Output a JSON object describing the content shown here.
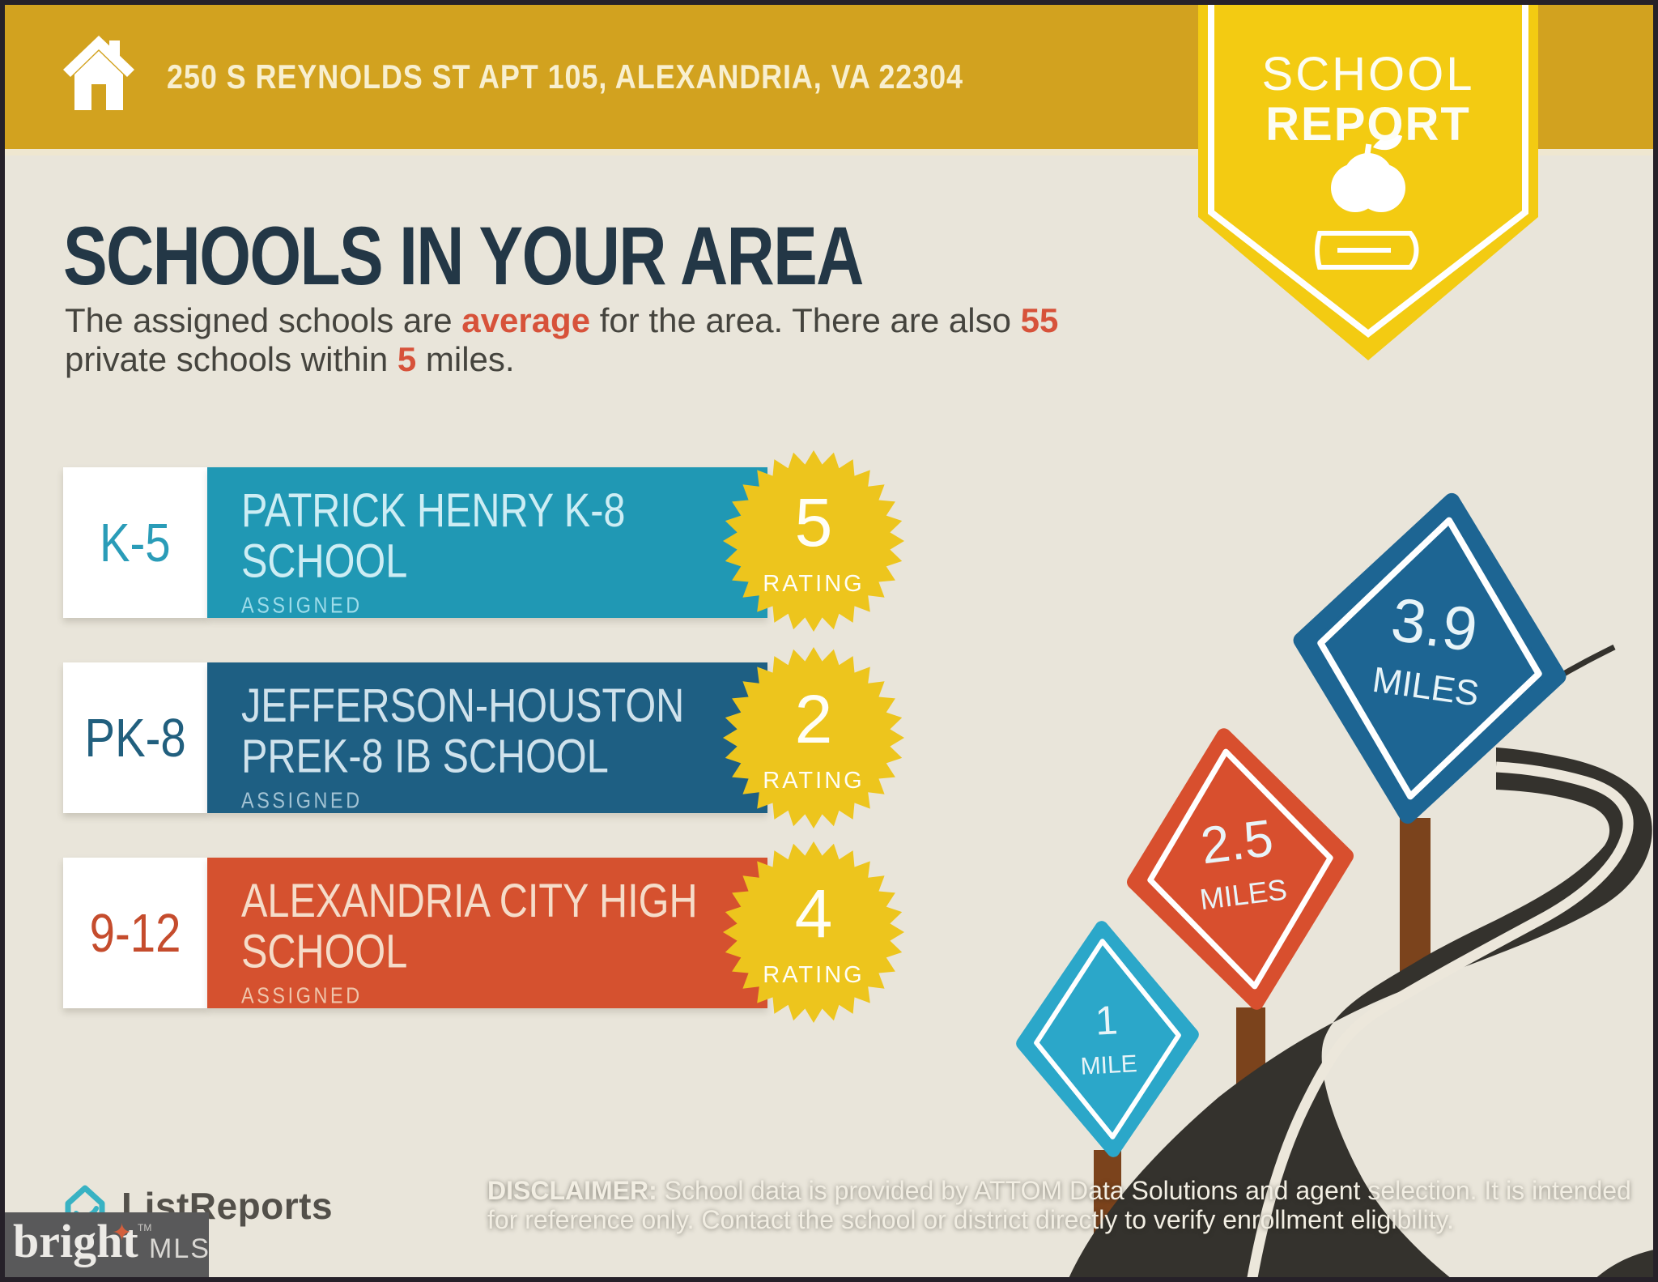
{
  "banner": {
    "address": "250 S REYNOLDS ST APT 105, ALEXANDRIA, VA 22304"
  },
  "ribbon": {
    "line1": "SCHOOL",
    "line2": "REPORT",
    "icons": [
      "apple-icon",
      "book-icon"
    ]
  },
  "heading": "SCHOOLS IN YOUR AREA",
  "intro": {
    "seg1": "The assigned schools are ",
    "bold1": "average",
    "seg2": " for the area. There are also ",
    "bold2": "55",
    "seg3": "private schools within ",
    "bold3": "5",
    "seg4": " miles."
  },
  "schools": [
    {
      "grades": "K-5",
      "name_line1": "PATRICK HENRY K-8",
      "name_line2": "SCHOOL",
      "status": "ASSIGNED",
      "rating": "5",
      "rating_label": "RATING",
      "bar_color": "#2098b4"
    },
    {
      "grades": "PK-8",
      "name_line1": "JEFFERSON-HOUSTON",
      "name_line2": "PREK-8 IB SCHOOL",
      "status": "ASSIGNED",
      "rating": "2",
      "rating_label": "RATING",
      "bar_color": "#1e5f83"
    },
    {
      "grades": "9-12",
      "name_line1": "ALEXANDRIA CITY HIGH",
      "name_line2": "SCHOOL",
      "status": "ASSIGNED",
      "rating": "4",
      "rating_label": "RATING",
      "bar_color": "#d5512f"
    }
  ],
  "signs": [
    {
      "value": "1",
      "unit": "MILE",
      "color": "#2ba7c9"
    },
    {
      "value": "2.5",
      "unit": "MILES",
      "color": "#d84f2e"
    },
    {
      "value": "3.9",
      "unit": "MILES",
      "color": "#1d6593"
    }
  ],
  "footer": {
    "logo_text": "ListReports",
    "mls_brand": "bright",
    "mls_tm": "TM",
    "mls_suffix": "MLS",
    "disclaimer_label": "DISCLAIMER:",
    "disclaimer_line1_rest": " School data is provided by ATTOM Data Solutions and agent selection. It is intended",
    "disclaimer_line2": "for reference only. Contact the school or district directly to verify enrollment eligibility."
  },
  "colors": {
    "background": "#e9e5da",
    "banner_gold": "#d2a21f",
    "ribbon_yellow": "#f3cb12",
    "heading_navy": "#233746",
    "accent_red": "#d7523a",
    "badge_yellow": "#edc51d",
    "road_dark": "#34322d",
    "post_brown": "#7b431c"
  }
}
